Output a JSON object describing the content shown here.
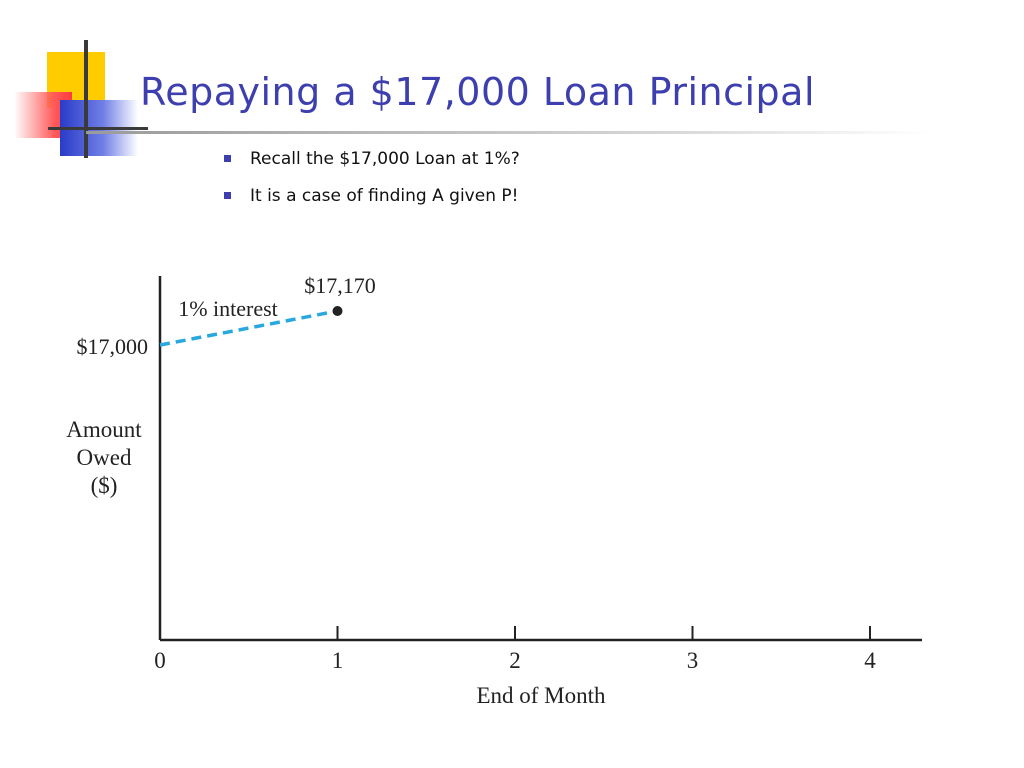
{
  "slide": {
    "title": "Repaying a $17,000 Loan Principal",
    "bullets": [
      "Recall the $17,000 Loan at 1%?",
      "It is a case of finding A given P!"
    ]
  },
  "chart_data": {
    "type": "line",
    "title": "",
    "xlabel": "End of Month",
    "ylabel": "Amount Owed ($)",
    "xlim": [
      0,
      4.3
    ],
    "x_ticks": [
      "0",
      "1",
      "2",
      "3",
      "4"
    ],
    "y_tick_labels": [
      "$17,000"
    ],
    "series": [
      {
        "name": "1% interest",
        "style": "dashed",
        "color": "#29a8e0",
        "x": [
          0,
          0.25,
          0.5,
          0.75,
          1
        ],
        "y": [
          17000,
          17042,
          17085,
          17127,
          17170
        ]
      }
    ],
    "annotations": [
      {
        "text": "$17,170",
        "x": 1,
        "y": 17170
      },
      {
        "text": "1% interest",
        "x": 0.5,
        "y": 17085
      }
    ],
    "grid": false,
    "legend": "none"
  }
}
